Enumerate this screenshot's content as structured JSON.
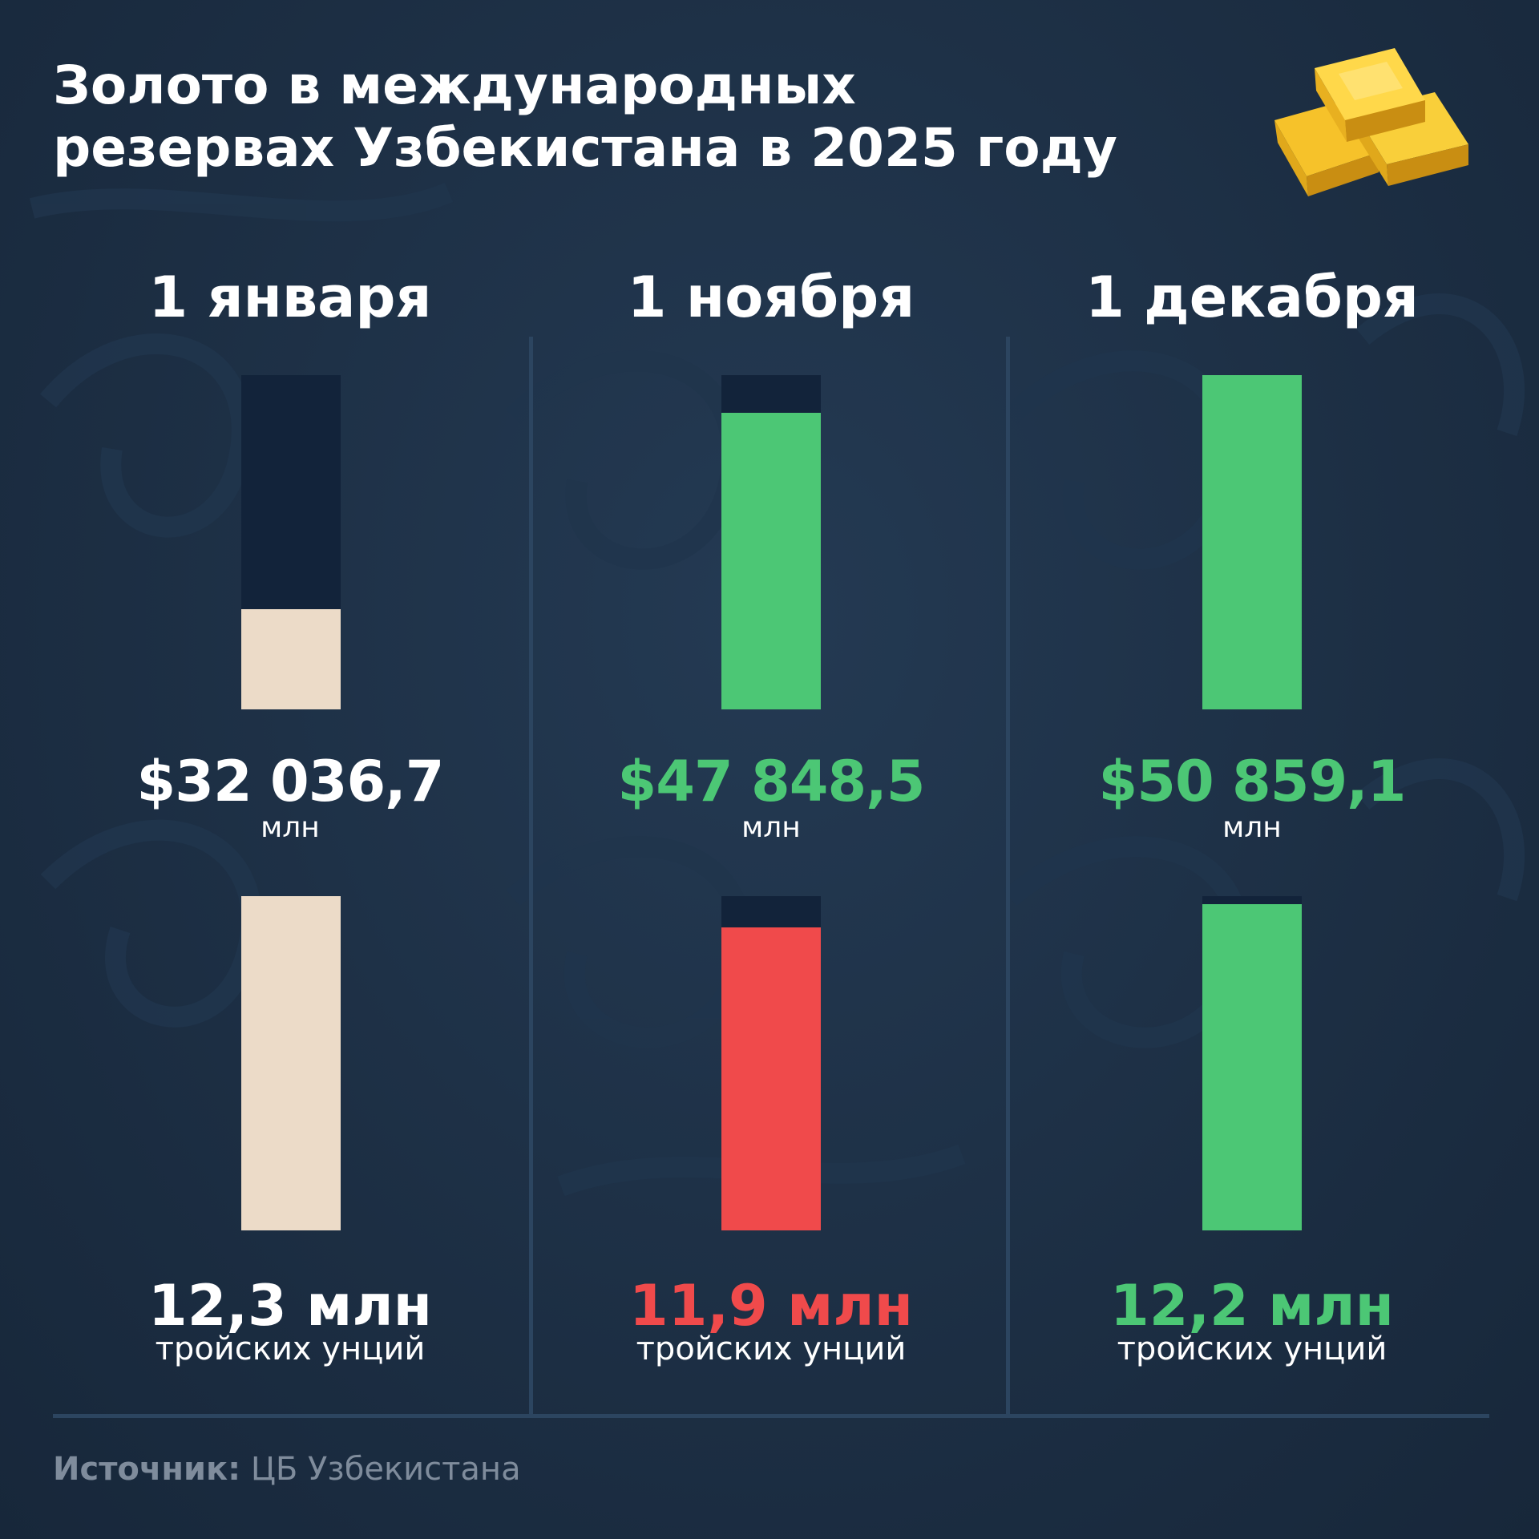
{
  "title_lines": [
    "Золото в международных",
    "резервах Узбекистана в 2025 году"
  ],
  "colors": {
    "neutral": "#ecdbc8",
    "increase": "#4cc775",
    "decrease": "#f04a4b",
    "white": "#ffffff",
    "track": "#12233a"
  },
  "chart_data": [
    {
      "type": "bar",
      "categories": [
        "1 января",
        "1 ноября",
        "1 декабря"
      ],
      "values": [
        32036.7,
        47848.5,
        50859.1
      ],
      "value_labels": [
        "$32 036,7",
        "$47 848,5",
        "$50 859,1"
      ],
      "unit_label": "млн",
      "label_colors": [
        "#ffffff",
        "#4cc775",
        "#4cc775"
      ],
      "bar_colors": [
        "#ecdbc8",
        "#4cc775",
        "#4cc775"
      ]
    },
    {
      "type": "bar",
      "categories": [
        "1 января",
        "1 ноября",
        "1 декабря"
      ],
      "values": [
        12.3,
        11.9,
        12.2
      ],
      "value_labels": [
        "12,3 млн",
        "11,9 млн",
        "12,2 млн"
      ],
      "unit_label": "тройских унций",
      "label_colors": [
        "#ffffff",
        "#f04a4b",
        "#4cc775"
      ],
      "bar_colors": [
        "#ecdbc8",
        "#f04a4b",
        "#4cc775"
      ]
    }
  ],
  "source": {
    "label": "Источник:",
    "text": " ЦБ Узбекистана"
  },
  "icons": {
    "gold": "gold-bars-icon"
  }
}
